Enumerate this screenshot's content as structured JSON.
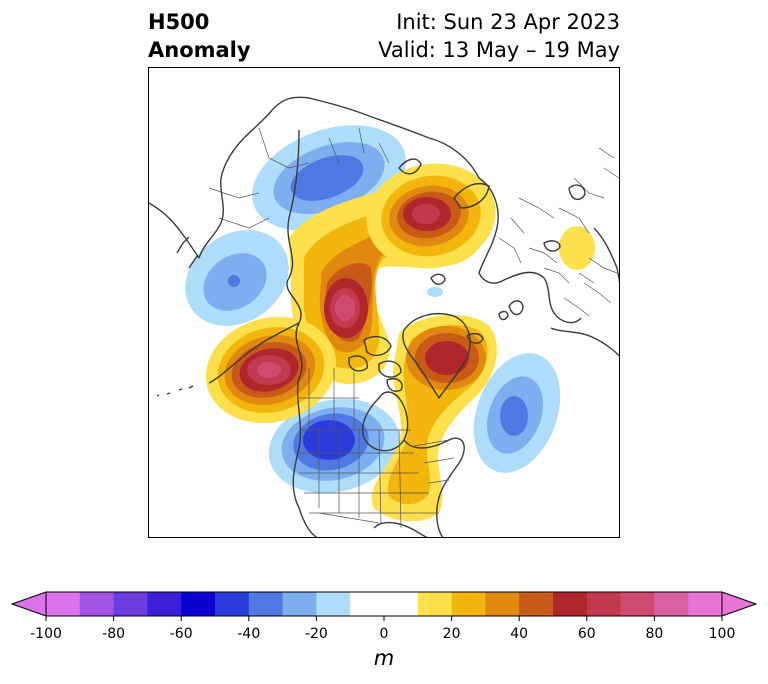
{
  "header": {
    "left_line1": "H500",
    "left_line2": "Anomaly",
    "right_line1": "Init: Sun 23 Apr 2023",
    "right_line2": "Valid: 13 May – 19 May"
  },
  "map": {
    "projection": "north-polar-stereographic",
    "features": [
      "coastlines",
      "country-borders",
      "us-state-borders",
      "canadian-province-borders"
    ]
  },
  "anomaly_centers": [
    {
      "region": "Northern Siberia / Kara Sea",
      "sign": "negative",
      "approx_m": -40
    },
    {
      "region": "North Pacific",
      "sign": "negative",
      "approx_m": -40
    },
    {
      "region": "Scandinavia / Barents Sea",
      "sign": "positive",
      "approx_m": 70
    },
    {
      "region": "Alaska / Beaufort Sea",
      "sign": "positive",
      "approx_m": 80
    },
    {
      "region": "Gulf of Alaska",
      "sign": "positive",
      "approx_m": 80
    },
    {
      "region": "Greenland",
      "sign": "positive",
      "approx_m": 60
    },
    {
      "region": "Western United States",
      "sign": "negative",
      "approx_m": -60
    },
    {
      "region": "North Atlantic",
      "sign": "negative",
      "approx_m": -50
    },
    {
      "region": "Eastern United States",
      "sign": "positive",
      "approx_m": 20
    },
    {
      "region": "Mediterranean",
      "sign": "positive",
      "approx_m": 15
    }
  ],
  "colorbar": {
    "unit": "m",
    "ticks": [
      "-100",
      "-80",
      "-60",
      "-40",
      "-20",
      "0",
      "20",
      "40",
      "60",
      "80",
      "100"
    ],
    "levels": [
      -100,
      -90,
      -80,
      -70,
      -60,
      -50,
      -40,
      -30,
      -20,
      -10,
      10,
      20,
      30,
      40,
      50,
      60,
      70,
      80,
      90,
      100
    ],
    "colors": [
      "#da73e8",
      "#a154e2",
      "#6c3de0",
      "#3d1fd8",
      "#0a00d2",
      "#2b3cdc",
      "#5078e2",
      "#7daef0",
      "#aedcfb",
      "#ffffff",
      "#fde04b",
      "#f2b50c",
      "#e0880f",
      "#c85a18",
      "#b1262b",
      "#c2384f",
      "#d04a70",
      "#d860a0",
      "#e874d4"
    ],
    "extend_min_color": "#da73e8",
    "extend_max_color": "#e874d4"
  }
}
